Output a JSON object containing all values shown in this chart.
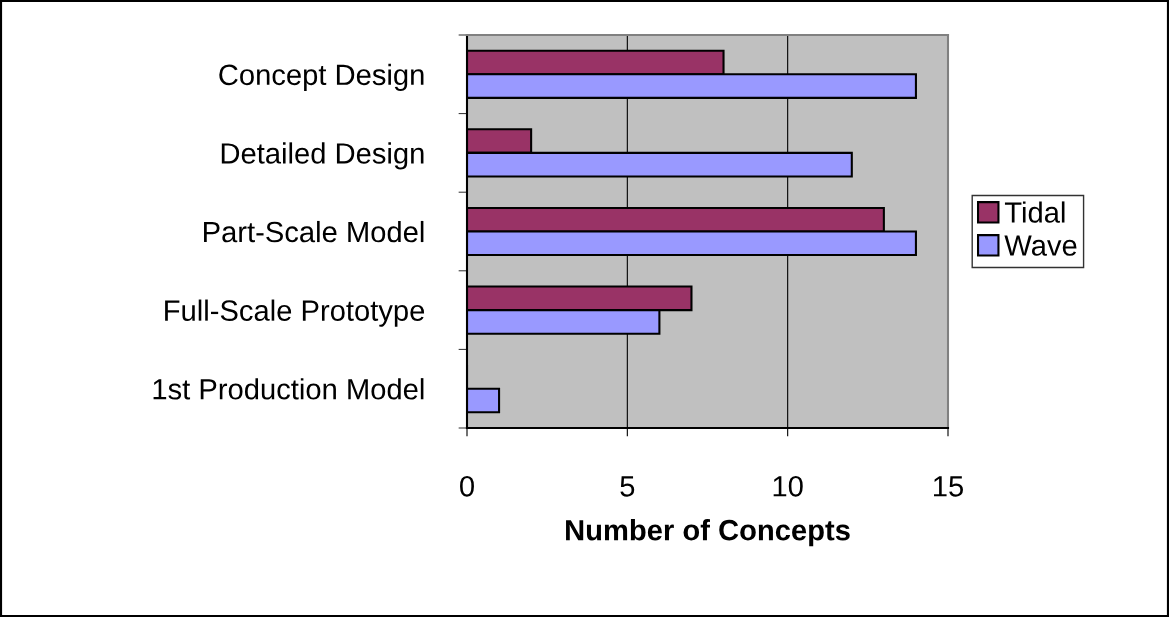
{
  "chart_data": {
    "type": "bar",
    "orientation": "horizontal",
    "xlabel": "Number of Concepts",
    "categories": [
      "Concept Design",
      "Detailed Design",
      "Part-Scale Model",
      "Full-Scale Prototype",
      "1st Production Model"
    ],
    "series": [
      {
        "name": "Tidal",
        "color": "#993366",
        "values": [
          8,
          2,
          13,
          7,
          0
        ]
      },
      {
        "name": "Wave",
        "color": "#9999ff",
        "values": [
          14,
          12,
          14,
          6,
          1
        ]
      }
    ],
    "xlim": [
      0,
      15
    ],
    "xticks": [
      0,
      5,
      10,
      15
    ],
    "grid": "x",
    "legend": "right"
  }
}
